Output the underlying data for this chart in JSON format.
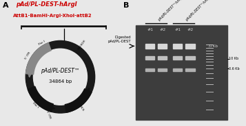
{
  "panel_A_label": "A",
  "panel_B_label": "B",
  "title_red": "pAd/PL-DEST-hArgI",
  "subtitle_red": "AttB1-BamHI-ArgI-XhoI-attB2",
  "plasmid_name": "pAd/PL-DEST™",
  "plasmid_bp": "34864 bp",
  "gel_label1": "pAd/PL-DEST™hArgI",
  "gel_label2": "pAd/PL-DEST™hArgII",
  "lane_labels": [
    "#1",
    "#2",
    "#1",
    "#2"
  ],
  "digested_label": "Digested\npAd/PL-DEST",
  "marker_37kb": "37Kb",
  "marker_10kb": "10 Kb",
  "marker_06kb": "0.6 Kb",
  "bg_color": "#e8e8e8",
  "gel_bg": "#5a5a5a",
  "gel_dark": "#3d3d3d",
  "band_bright": "#d8d8d8",
  "band_mid": "#c0c0c0",
  "band_low": "#b0b0b0",
  "marker_band": "#b8b8b8",
  "plasmid_ring_color": "#1a1a1a",
  "gray_arrow_color": "#888888",
  "black_arrow_color": "#111111"
}
